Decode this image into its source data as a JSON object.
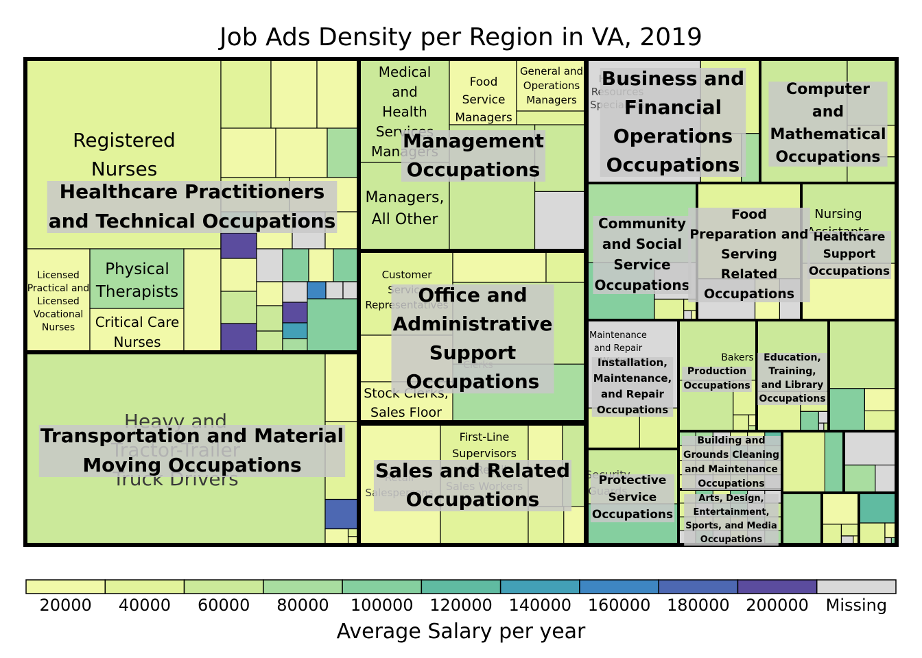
{
  "chart_data": {
    "type": "treemap",
    "title": "Job Ads Density per Region in VA, 2019",
    "colorbar": {
      "label": "Average Salary per year",
      "ticks": [
        "20000",
        "40000",
        "60000",
        "80000",
        "100000",
        "120000",
        "140000",
        "160000",
        "180000",
        "200000",
        "Missing"
      ],
      "colors": [
        "#f1f9a9",
        "#e2f39b",
        "#cbe99a",
        "#a9dda0",
        "#85cf9f",
        "#60bba1",
        "#43a0b7",
        "#3e86c2",
        "#4d68b2",
        "#5b4c9e",
        "#d9d9d9"
      ]
    },
    "groups": [
      {
        "name": "Healthcare Practitioners and Technical Occupations",
        "labeled_occupations": [
          {
            "name": "Registered Nurses",
            "salary": 40000
          },
          {
            "name": "Licensed Practical and Licensed Vocational Nurses",
            "salary": 40000
          },
          {
            "name": "Physical Therapists",
            "salary": 80000
          },
          {
            "name": "Critical Care Nurses",
            "salary": 40000
          }
        ]
      },
      {
        "name": "Transportation and Material Moving Occupations",
        "labeled_occupations": [
          {
            "name": "Heavy and Tractor-Trailer Truck Drivers",
            "salary": 60000
          }
        ]
      },
      {
        "name": "Management Occupations",
        "labeled_occupations": [
          {
            "name": "Medical and Health Services Managers",
            "salary": 60000
          },
          {
            "name": "Food Service Managers",
            "salary": 40000
          },
          {
            "name": "General and Operations Managers",
            "salary": 40000
          },
          {
            "name": "Managers, All Other",
            "salary": 60000
          }
        ]
      },
      {
        "name": "Office and Administrative Support Occupations",
        "labeled_occupations": [
          {
            "name": "Customer Service Representatives",
            "salary": 40000
          },
          {
            "name": "Stock Clerks, Sales Floor",
            "salary": 20000
          },
          {
            "name": "Clerks",
            "salary": 40000
          }
        ]
      },
      {
        "name": "Sales and Related Occupations",
        "labeled_occupations": [
          {
            "name": "First-Line Supervisors",
            "salary": 40000
          },
          {
            "name": "Retail Salespersons",
            "salary": 20000
          },
          {
            "name": "Sales Workers",
            "salary": 40000
          }
        ]
      },
      {
        "name": "Business and Financial Operations Occupations",
        "labeled_occupations": [
          {
            "name": "Human Resources Specialists",
            "salary": 40000
          }
        ]
      },
      {
        "name": "Computer and Mathematical Occupations",
        "labeled_occupations": []
      },
      {
        "name": "Community and Social Service Occupations",
        "labeled_occupations": []
      },
      {
        "name": "Food Preparation and Serving Related Occupations",
        "labeled_occupations": []
      },
      {
        "name": "Healthcare Support Occupations",
        "labeled_occupations": [
          {
            "name": "Nursing Assistants",
            "salary": 40000
          }
        ]
      },
      {
        "name": "Installation, Maintenance, and Repair Occupations",
        "labeled_occupations": [
          {
            "name": "Maintenance and Repair",
            "salary": 40000
          }
        ]
      },
      {
        "name": "Production Occupations",
        "labeled_occupations": [
          {
            "name": "Bakers",
            "salary": 40000
          }
        ]
      },
      {
        "name": "Education, Training, and Library Occupations",
        "labeled_occupations": []
      },
      {
        "name": "Building and Grounds Cleaning and Maintenance Occupations",
        "labeled_occupations": []
      },
      {
        "name": "Protective Service Occupations",
        "labeled_occupations": [
          {
            "name": "Security Guards",
            "salary": 40000
          }
        ]
      },
      {
        "name": "Arts, Design, Entertainment, Sports, and Media Occupations",
        "labeled_occupations": []
      }
    ]
  }
}
